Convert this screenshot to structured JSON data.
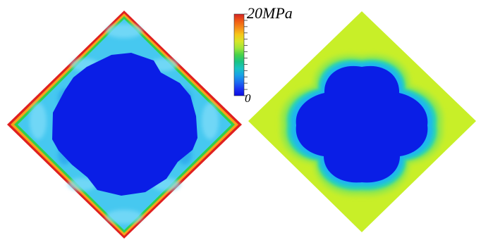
{
  "colorbar": {
    "max_label": "20MPa",
    "min_label": "0",
    "range_mpa": [
      0,
      20
    ],
    "colors": [
      "#d42424",
      "#f05a14",
      "#f58c19",
      "#f6c619",
      "#d7e628",
      "#a0e63a",
      "#46d24a",
      "#19c384",
      "#19c3c3",
      "#19a0e6",
      "#1c6ef0",
      "#1a32f2",
      "#0d0ce2"
    ]
  },
  "panels": [
    {
      "name": "left-stress-contour",
      "colors": {
        "frame_edge": "#e02020",
        "frame_orange": "#f6a21c",
        "frame_green": "#2fd04a",
        "frame_fill": "#46c8f0",
        "frame_fill_light": "#7fdcf8",
        "core": "#0a1ee6"
      }
    },
    {
      "name": "right-stress-contour",
      "colors": {
        "outer": "#c8ef28",
        "halo_outer": "#8ee84e",
        "halo_inner": "#2ad4b4",
        "halo_cyan": "#1ab6f0",
        "core": "#0a1ee6"
      }
    }
  ]
}
